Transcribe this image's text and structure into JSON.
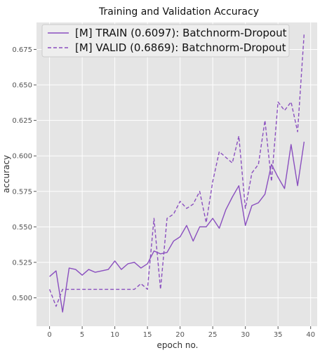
{
  "chart_data": {
    "type": "line",
    "title": "Training and Validation Accuracy",
    "xlabel": "epoch no.",
    "ylabel": "accuracy",
    "xlim": [
      -2,
      41
    ],
    "ylim": [
      0.48,
      0.694
    ],
    "xticks": [
      0,
      5,
      10,
      15,
      20,
      25,
      30,
      35,
      40
    ],
    "yticks": [
      0.5,
      0.525,
      0.55,
      0.575,
      0.6,
      0.625,
      0.65,
      0.675
    ],
    "ytick_labels": [
      "0.500",
      "0.525",
      "0.550",
      "0.575",
      "0.600",
      "0.625",
      "0.650",
      "0.675"
    ],
    "grid": true,
    "legend_position": "top",
    "x": [
      0,
      1,
      2,
      3,
      4,
      5,
      6,
      7,
      8,
      9,
      10,
      11,
      12,
      13,
      14,
      15,
      16,
      17,
      18,
      19,
      20,
      21,
      22,
      23,
      24,
      25,
      26,
      27,
      28,
      29,
      30,
      31,
      32,
      33,
      34,
      35,
      36,
      37,
      38,
      39
    ],
    "series": [
      {
        "name": "[M] TRAIN (0.6097): Batchnorm-Dropout",
        "color": "#8a4fbf",
        "style": "solid",
        "values": [
          0.515,
          0.519,
          0.49,
          0.521,
          0.52,
          0.516,
          0.52,
          0.518,
          0.519,
          0.52,
          0.526,
          0.52,
          0.524,
          0.525,
          0.521,
          0.524,
          0.533,
          0.531,
          0.532,
          0.54,
          0.543,
          0.551,
          0.54,
          0.55,
          0.55,
          0.556,
          0.549,
          0.562,
          0.571,
          0.579,
          0.551,
          0.565,
          0.567,
          0.573,
          0.594,
          0.585,
          0.577,
          0.608,
          0.579,
          0.61
        ]
      },
      {
        "name": "[M] VALID (0.6869): Batchnorm-Dropout",
        "color": "#8a4fbf",
        "style": "dashed",
        "values": [
          0.506,
          0.494,
          0.506,
          0.506,
          0.506,
          0.506,
          0.506,
          0.506,
          0.506,
          0.506,
          0.506,
          0.506,
          0.506,
          0.506,
          0.51,
          0.506,
          0.556,
          0.506,
          0.556,
          0.559,
          0.568,
          0.563,
          0.566,
          0.575,
          0.553,
          0.582,
          0.603,
          0.599,
          0.595,
          0.614,
          0.563,
          0.588,
          0.594,
          0.625,
          0.582,
          0.638,
          0.632,
          0.638,
          0.617,
          0.686
        ]
      }
    ]
  }
}
